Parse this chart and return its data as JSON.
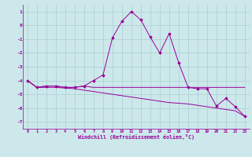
{
  "x": [
    0,
    1,
    2,
    3,
    4,
    5,
    6,
    7,
    8,
    9,
    10,
    11,
    12,
    13,
    14,
    15,
    16,
    17,
    18,
    19,
    20,
    21,
    22,
    23
  ],
  "line1_y": [
    -4.0,
    -4.5,
    -4.4,
    -4.4,
    -4.5,
    -4.5,
    -4.4,
    -4.0,
    -3.6,
    -0.9,
    0.3,
    1.0,
    0.4,
    -0.85,
    -2.0,
    -0.6,
    -2.7,
    -4.5,
    -4.6,
    -4.6,
    -5.85,
    -5.3,
    -5.9,
    -6.6
  ],
  "line2_y": [
    -4.0,
    -4.5,
    -4.4,
    -4.4,
    -4.5,
    -4.5,
    -4.4,
    -4.5,
    -4.5,
    -4.5,
    -4.5,
    -4.5,
    -4.5,
    -4.5,
    -4.5,
    -4.5,
    -4.5,
    -4.5,
    -4.5,
    -4.5,
    -4.5,
    -4.5,
    -4.5,
    -4.5
  ],
  "line3_y": [
    -4.0,
    -4.5,
    -4.5,
    -4.5,
    -4.55,
    -4.6,
    -4.7,
    -4.8,
    -4.9,
    -5.0,
    -5.1,
    -5.2,
    -5.3,
    -5.4,
    -5.5,
    -5.6,
    -5.65,
    -5.7,
    -5.8,
    -5.9,
    -6.0,
    -6.1,
    -6.2,
    -6.6
  ],
  "line_color": "#990099",
  "bg_color": "#cce8eb",
  "grid_color": "#aacdd2",
  "ylim": [
    -7.5,
    1.5
  ],
  "yticks": [
    -7,
    -6,
    -5,
    -4,
    -3,
    -2,
    -1,
    0,
    1
  ],
  "xlim": [
    -0.5,
    23.5
  ],
  "xlabel": "Windchill (Refroidissement éolien,°C)"
}
